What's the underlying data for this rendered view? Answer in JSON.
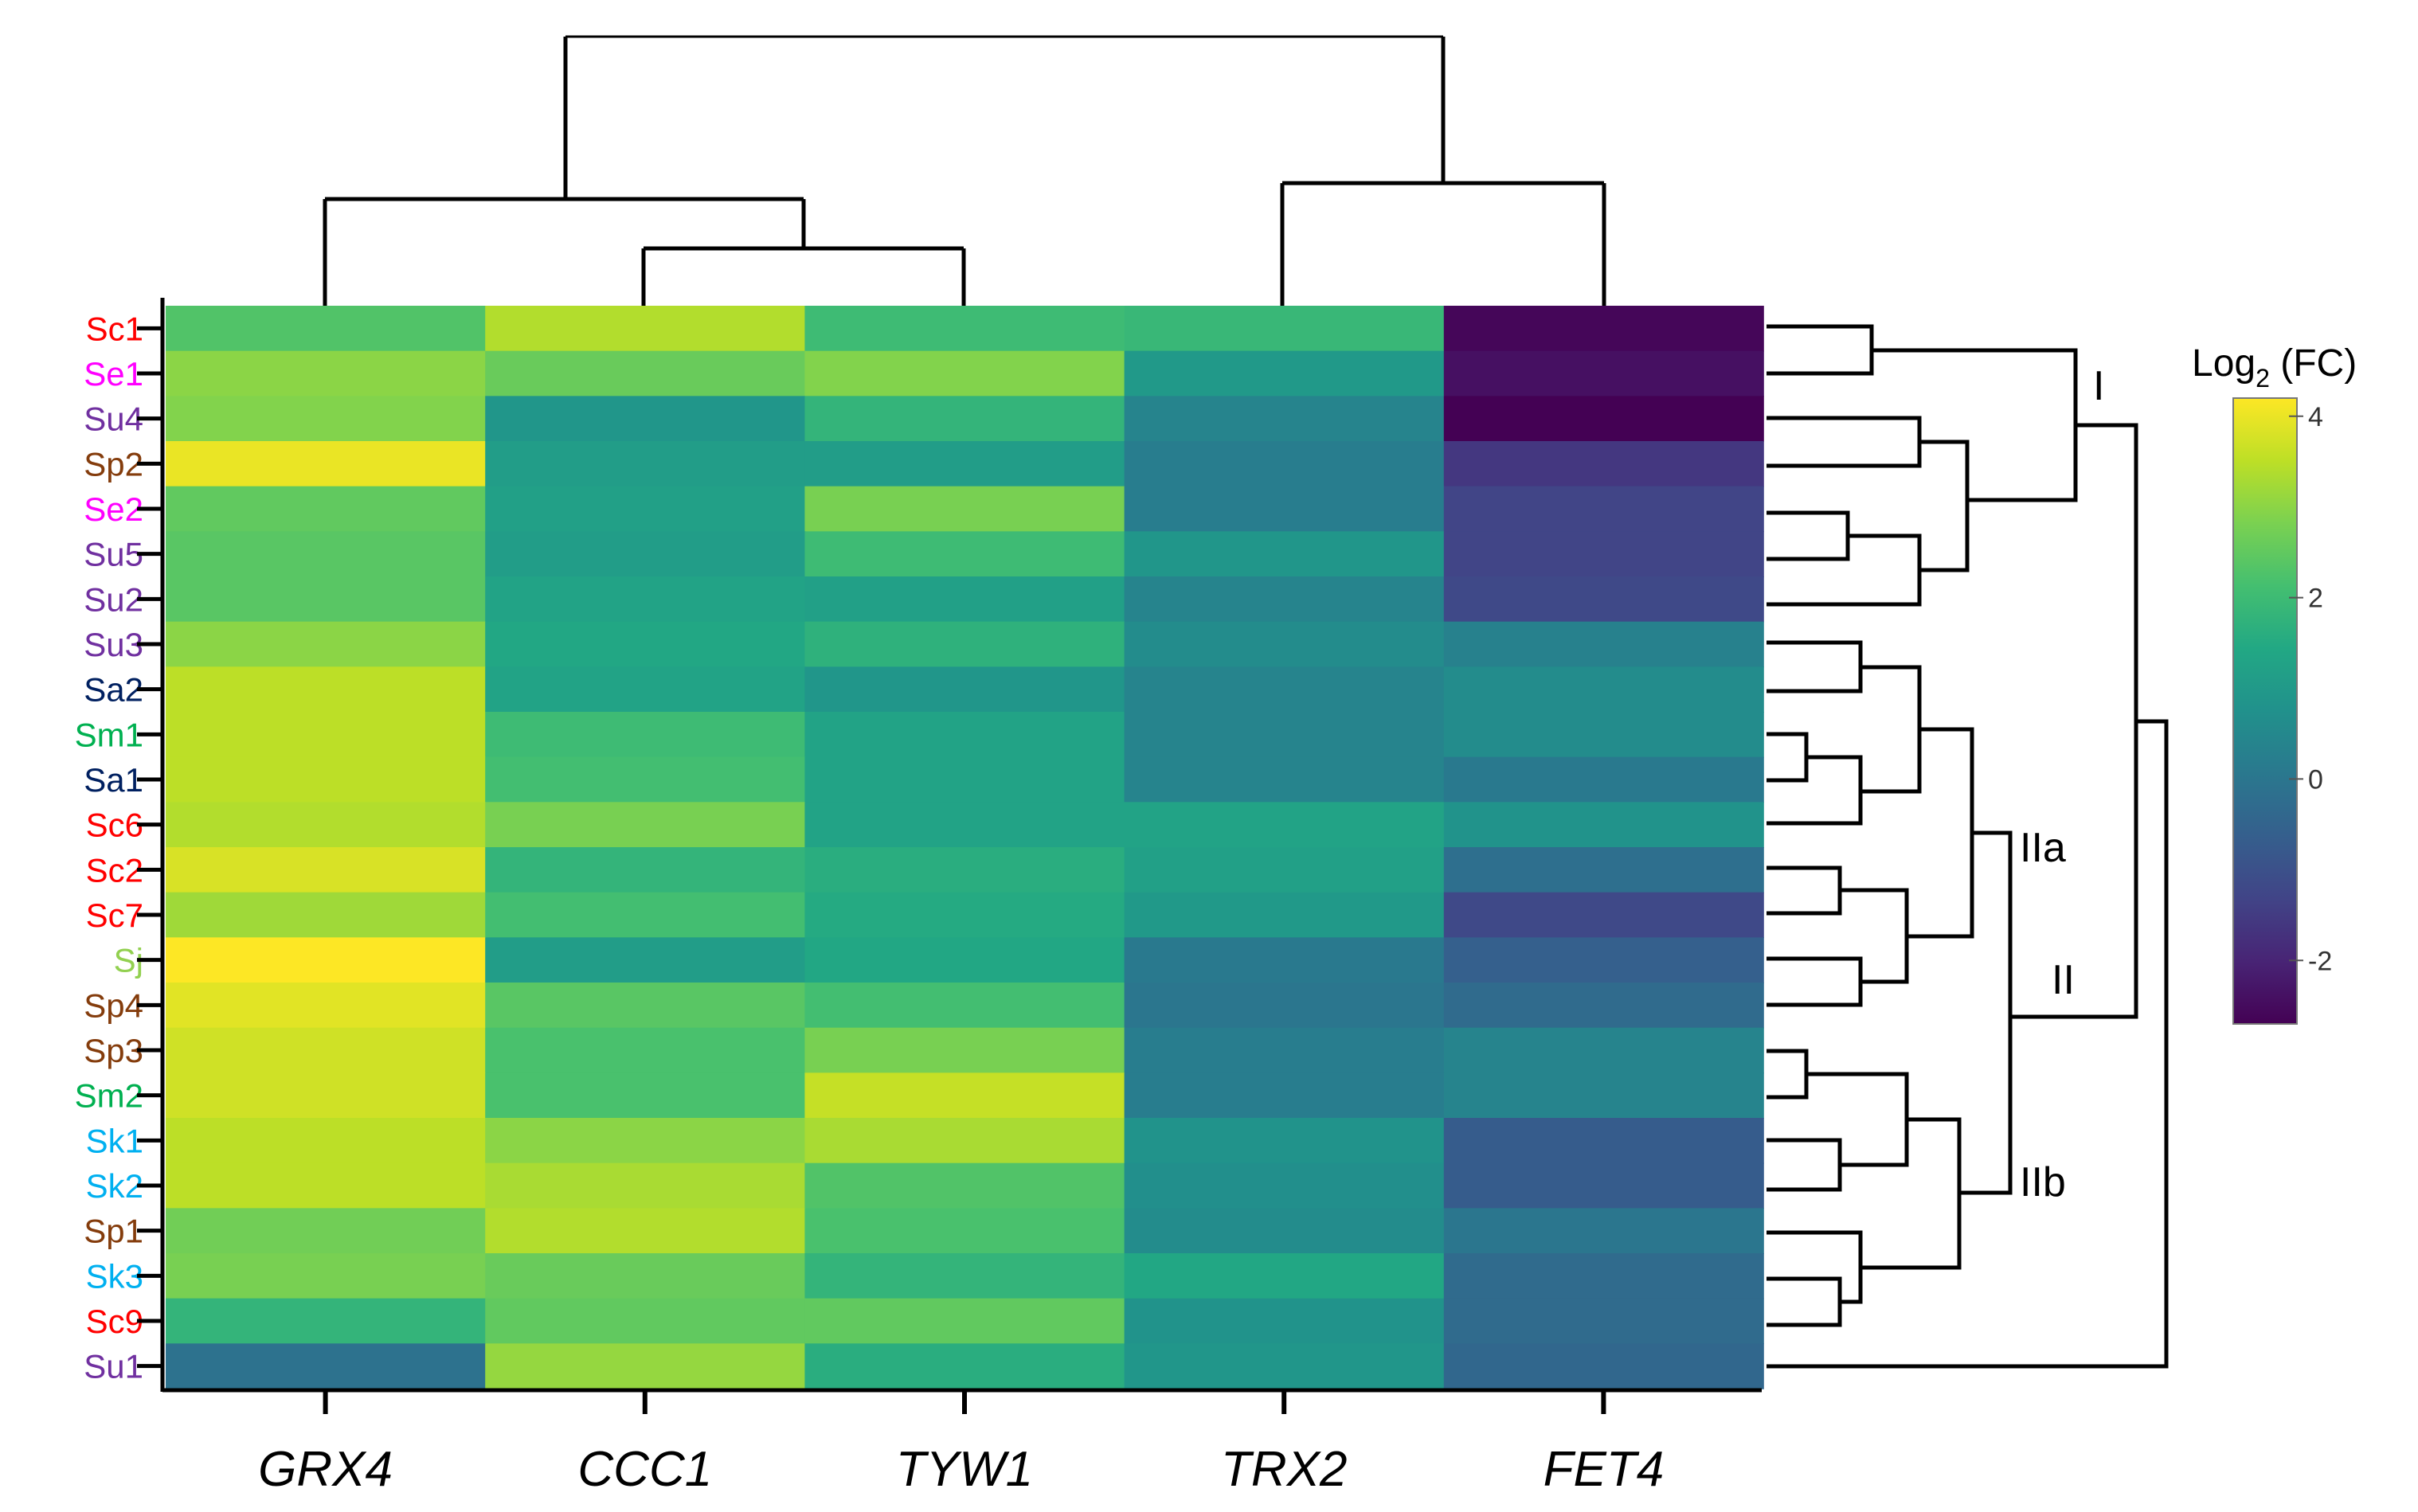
{
  "chart_data": {
    "type": "heatmap",
    "title": "",
    "columns": [
      "GRX4",
      "CCC1",
      "TYW1",
      "TRX2",
      "FET4"
    ],
    "rows": [
      {
        "label": "Sc1",
        "color": "#ff0000"
      },
      {
        "label": "Se1",
        "color": "#ff00ff"
      },
      {
        "label": "Su4",
        "color": "#7030a0"
      },
      {
        "label": "Sp2",
        "color": "#843c0c"
      },
      {
        "label": "Se2",
        "color": "#ff00ff"
      },
      {
        "label": "Su5",
        "color": "#7030a0"
      },
      {
        "label": "Su2",
        "color": "#7030a0"
      },
      {
        "label": "Su3",
        "color": "#7030a0"
      },
      {
        "label": "Sa2",
        "color": "#002060"
      },
      {
        "label": "Sm1",
        "color": "#00b050"
      },
      {
        "label": "Sa1",
        "color": "#002060"
      },
      {
        "label": "Sc6",
        "color": "#ff0000"
      },
      {
        "label": "Sc2",
        "color": "#ff0000"
      },
      {
        "label": "Sc7",
        "color": "#ff0000"
      },
      {
        "label": "Sj",
        "color": "#92d050"
      },
      {
        "label": "Sp4",
        "color": "#843c0c"
      },
      {
        "label": "Sp3",
        "color": "#843c0c"
      },
      {
        "label": "Sm2",
        "color": "#00b050"
      },
      {
        "label": "Sk1",
        "color": "#00b0f0"
      },
      {
        "label": "Sk2",
        "color": "#00b0f0"
      },
      {
        "label": "Sp1",
        "color": "#843c0c"
      },
      {
        "label": "Sk3",
        "color": "#00b0f0"
      },
      {
        "label": "Sc9",
        "color": "#ff0000"
      },
      {
        "label": "Su1",
        "color": "#7030a0"
      }
    ],
    "values": [
      [
        2.3,
        3.4,
        2.0,
        1.9,
        -2.6
      ],
      [
        3.0,
        2.6,
        2.9,
        1.0,
        -2.4
      ],
      [
        2.9,
        0.9,
        1.8,
        0.4,
        -2.7
      ],
      [
        4.0,
        1.1,
        1.1,
        0.2,
        -1.6
      ],
      [
        2.5,
        1.2,
        2.8,
        0.2,
        -1.3
      ],
      [
        2.4,
        1.1,
        2.0,
        0.9,
        -1.3
      ],
      [
        2.4,
        1.3,
        1.2,
        0.4,
        -1.2
      ],
      [
        3.0,
        1.4,
        1.7,
        0.6,
        0.3
      ],
      [
        3.5,
        1.3,
        0.9,
        0.4,
        0.6
      ],
      [
        3.5,
        2.0,
        1.3,
        0.4,
        0.6
      ],
      [
        3.5,
        2.1,
        1.3,
        0.4,
        0.1
      ],
      [
        3.4,
        2.8,
        1.3,
        1.3,
        0.8
      ],
      [
        3.8,
        1.8,
        1.6,
        1.2,
        -0.2
      ],
      [
        3.2,
        2.1,
        1.5,
        1.0,
        -1.2
      ],
      [
        4.3,
        1.1,
        1.4,
        0.1,
        -0.6
      ],
      [
        3.9,
        2.4,
        2.1,
        0.0,
        -0.3
      ],
      [
        3.7,
        2.2,
        2.8,
        0.2,
        0.4
      ],
      [
        3.7,
        2.2,
        3.6,
        0.2,
        0.4
      ],
      [
        3.5,
        3.0,
        3.3,
        0.8,
        -0.7
      ],
      [
        3.5,
        3.3,
        2.3,
        0.7,
        -0.7
      ],
      [
        2.7,
        3.4,
        2.2,
        0.6,
        0.0
      ],
      [
        2.8,
        2.6,
        1.8,
        1.4,
        -0.3
      ],
      [
        1.8,
        2.5,
        2.5,
        0.8,
        -0.3
      ],
      [
        -0.1,
        3.1,
        1.6,
        0.9,
        -0.4
      ]
    ],
    "colorbar": {
      "title_main": "Log",
      "title_sub": "2",
      "title_tail": " (FC)",
      "range": [
        -2.7,
        4.2
      ],
      "ticks": [
        {
          "value": 4,
          "label": "4"
        },
        {
          "value": 2,
          "label": "2"
        },
        {
          "value": 0,
          "label": "0"
        },
        {
          "value": -2,
          "label": "-2"
        }
      ]
    },
    "clusters": [
      {
        "label": "I"
      },
      {
        "label": "IIa"
      },
      {
        "label": "II"
      },
      {
        "label": "IIb"
      }
    ]
  }
}
